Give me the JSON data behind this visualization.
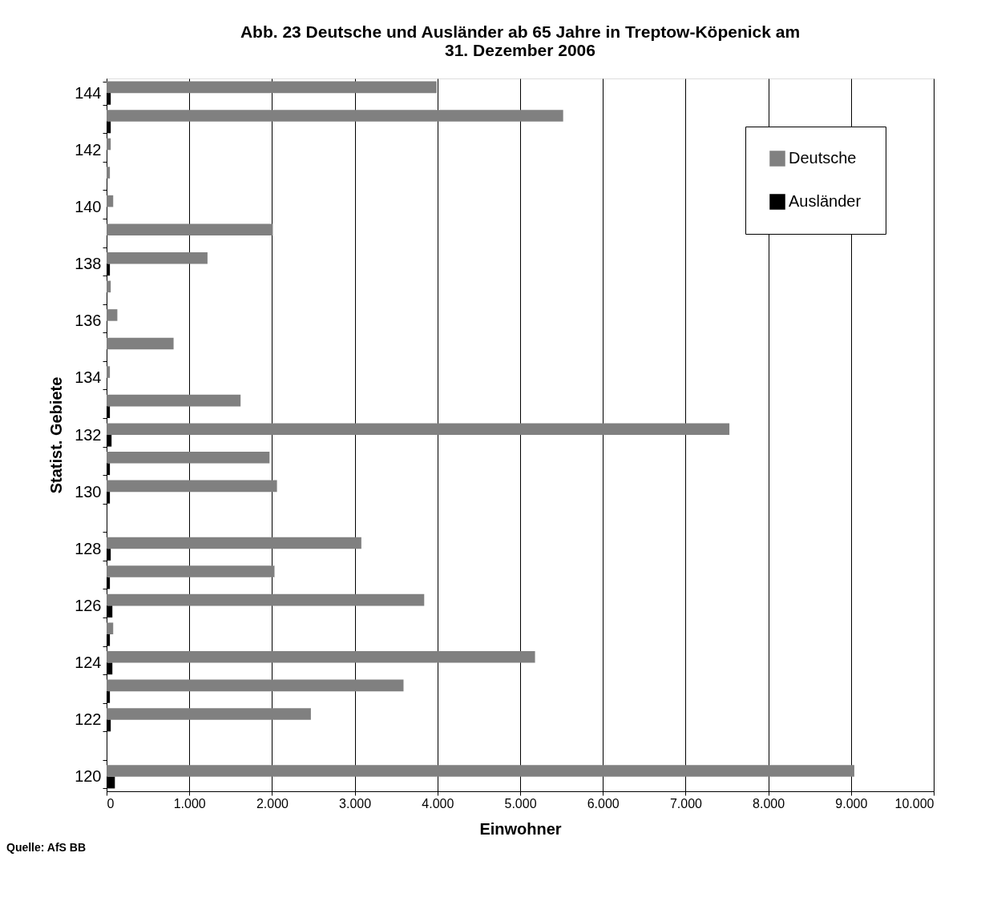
{
  "chart_data": {
    "type": "bar",
    "orientation": "horizontal",
    "title": "Abb. 23",
    "subtitle": "Deutsche und Ausländer ab 65 Jahre in Treptow-Köpenick am 31. Dezember 2006",
    "xlabel": "Einwohner",
    "ylabel": "Statist. Gebiete",
    "annotations": [
      "Quelle: AfS BB"
    ],
    "categories": [
      "144",
      null,
      "142",
      null,
      "140",
      null,
      "138",
      null,
      "136",
      null,
      "134",
      null,
      "132",
      null,
      "130",
      null,
      "128",
      null,
      "126",
      null,
      "124",
      null,
      "122",
      null,
      "120"
    ],
    "series": [
      {
        "name": "Deutsche",
        "color": "#808080",
        "values": [
          3990,
          5520,
          50,
          40,
          80,
          2010,
          1220,
          50,
          130,
          810,
          40,
          1620,
          7530,
          1970,
          2060,
          0,
          3080,
          2030,
          3840,
          80,
          5180,
          3590,
          2470,
          0,
          9040
        ]
      },
      {
        "name": "Ausländer",
        "color": "#000000",
        "values": [
          50,
          50,
          0,
          0,
          0,
          0,
          40,
          0,
          0,
          0,
          0,
          40,
          60,
          40,
          40,
          0,
          50,
          40,
          70,
          40,
          70,
          40,
          50,
          0,
          100
        ]
      }
    ],
    "xlim": [
      0,
      10000
    ],
    "xticks": [
      0,
      {
        "value": 1000,
        "label": "1.000"
      },
      {
        "value": 2000,
        "label": "2.000"
      },
      {
        "value": 3000,
        "label": "3.000"
      },
      {
        "value": 4000,
        "label": "4.000"
      },
      {
        "value": 5000,
        "label": "5.000"
      },
      {
        "value": 6000,
        "label": "6.000"
      },
      {
        "value": 7000,
        "label": "7.000"
      },
      {
        "value": 8000,
        "label": "8.000"
      },
      {
        "value": 9000,
        "label": "9.000"
      },
      {
        "value": 10000,
        "label": "10.000"
      }
    ],
    "grid": "x",
    "legend": "top right"
  }
}
